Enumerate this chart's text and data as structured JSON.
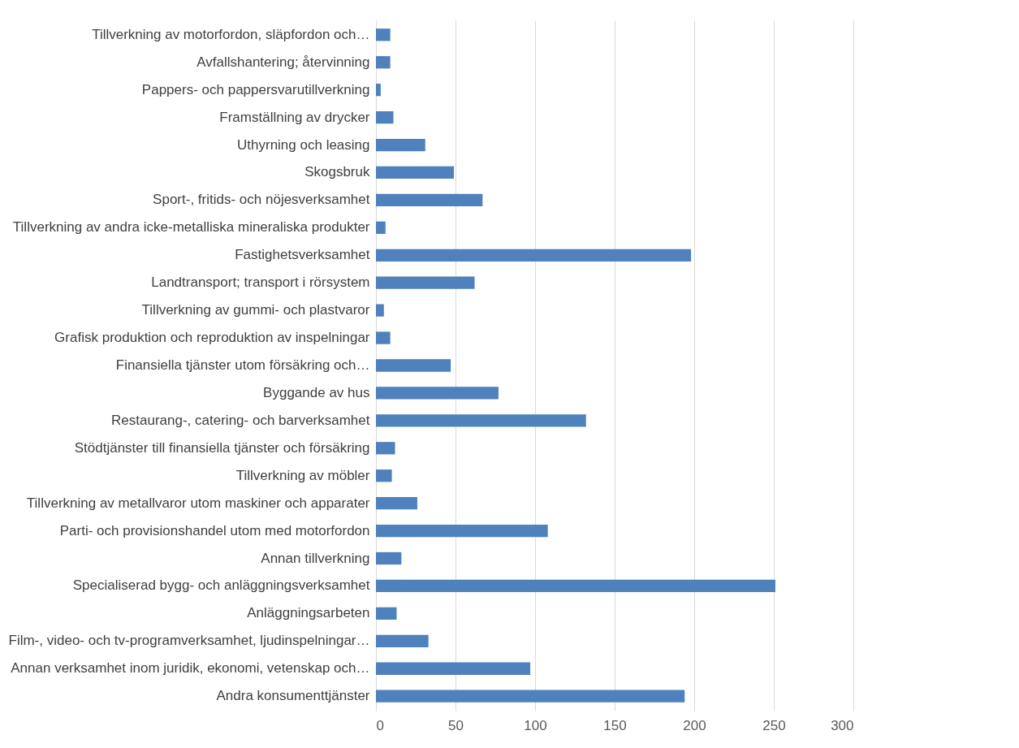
{
  "chart_data": {
    "type": "bar",
    "orientation": "horizontal",
    "categories": [
      "Tillverkning av motorfordon, släpfordon och…",
      "Avfallshantering; återvinning",
      "Pappers- och pappersvarutillverkning",
      "Framställning av drycker",
      "Uthyrning och leasing",
      "Skogsbruk",
      "Sport-, fritids- och nöjesverksamhet",
      "Tillverkning av andra icke-metalliska mineraliska produkter",
      "Fastighetsverksamhet",
      "Landtransport; transport i rörsystem",
      "Tillverkning av gummi- och plastvaror",
      "Grafisk produktion och reproduktion av inspelningar",
      "Finansiella tjänster utom försäkring och…",
      "Byggande av hus",
      "Restaurang-, catering- och barverksamhet",
      "Stödtjänster till finansiella tjänster och försäkring",
      "Tillverkning av möbler",
      "Tillverkning av metallvaror utom maskiner och apparater",
      "Parti- och provisionshandel utom med motorfordon",
      "Annan tillverkning",
      "Specialiserad bygg- och anläggningsverksamhet",
      "Anläggningsarbeten",
      "Film-, video- och tv-programverksamhet, ljudinspelningar…",
      "Annan verksamhet inom juridik, ekonomi, vetenskap och…",
      "Andra konsumenttjänster"
    ],
    "values": [
      9,
      9,
      3,
      11,
      31,
      49,
      67,
      6,
      198,
      62,
      5,
      9,
      47,
      77,
      132,
      12,
      10,
      26,
      108,
      16,
      251,
      13,
      33,
      97,
      194
    ],
    "color": "#4f81bd",
    "xlim": [
      0,
      300
    ],
    "xticks": [
      0,
      50,
      100,
      150,
      200,
      250,
      300
    ],
    "grid": "x"
  }
}
